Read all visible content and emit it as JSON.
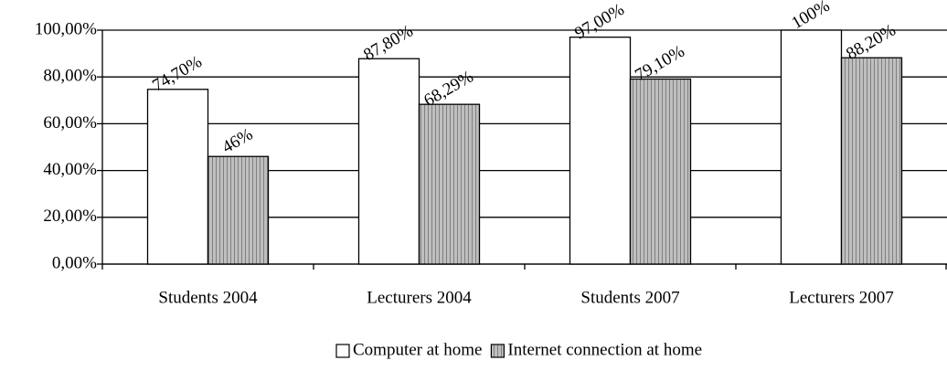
{
  "chart_data": {
    "type": "bar",
    "categories": [
      "Students 2004",
      "Lecturers 2004",
      "Students 2007",
      "Lecturers 2007"
    ],
    "series": [
      {
        "name": "Computer at home",
        "color": "#ffffff",
        "values": [
          74.7,
          87.8,
          97,
          100
        ],
        "value_labels": [
          "74,70%",
          "87,80%",
          "97,00%",
          "100%"
        ]
      },
      {
        "name": "Internet connection at home",
        "color": "#bfbfbf",
        "values": [
          46,
          68.29,
          79.1,
          88.2
        ],
        "value_labels": [
          "46%",
          "68,29%",
          "79,10%",
          "88,20%"
        ]
      }
    ],
    "ylim": [
      0,
      100
    ],
    "yticks": [
      {
        "value": 0,
        "label": "0,00%"
      },
      {
        "value": 20,
        "label": "20,00%"
      },
      {
        "value": 40,
        "label": "40,00%"
      },
      {
        "value": 60,
        "label": "60,00%"
      },
      {
        "value": 80,
        "label": "80,00%"
      },
      {
        "value": 100,
        "label": "100,00%"
      }
    ],
    "grid": true,
    "legend": "bottom"
  }
}
